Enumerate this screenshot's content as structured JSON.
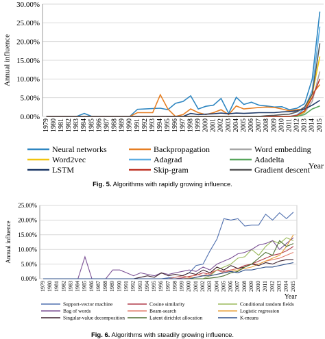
{
  "chart_data": [
    {
      "type": "line",
      "caption_label": "Fig. 5.",
      "caption_text": "Algorithms with rapidly growing influence.",
      "ylabel": "Annual influence",
      "xlabel": "Year",
      "ylim": [
        0,
        30
      ],
      "ytick_labels": [
        "0.00%",
        "5.00%",
        "10.00%",
        "15.00%",
        "20.00%",
        "25.00%",
        "30.00%"
      ],
      "x": [
        1979,
        1980,
        1981,
        1982,
        1983,
        1984,
        1985,
        1986,
        1987,
        1988,
        1989,
        1990,
        1991,
        1992,
        1993,
        1994,
        1995,
        1996,
        1997,
        1998,
        1999,
        2000,
        2001,
        2002,
        2003,
        2004,
        2005,
        2006,
        2007,
        2008,
        2009,
        2010,
        2011,
        2012,
        2013,
        2014,
        2015
      ],
      "series": [
        {
          "name": "Neural networks",
          "color": "#2e86c1",
          "values": [
            0,
            0,
            0,
            0,
            0,
            0.8,
            0,
            0,
            0,
            0,
            0,
            0,
            1.9,
            2,
            2.1,
            2.2,
            1.8,
            3.5,
            4,
            5.5,
            2,
            2.7,
            3,
            4.8,
            0.8,
            5.1,
            3.2,
            3.8,
            3,
            2.8,
            2.5,
            2.6,
            1.8,
            2.2,
            3.4,
            10,
            28
          ]
        },
        {
          "name": "Backpropagation",
          "color": "#e67e22",
          "values": [
            0,
            0,
            0,
            0,
            0,
            0,
            0,
            0,
            0,
            0,
            0,
            0,
            1,
            1,
            1,
            5.8,
            2,
            0,
            0.5,
            2,
            1,
            0.5,
            1,
            1.8,
            0.5,
            2.8,
            2,
            2.2,
            2.4,
            2.5,
            2.4,
            2,
            1.5,
            1.8,
            2,
            6,
            8.5
          ]
        },
        {
          "name": "Word embedding",
          "color": "#a6a6a6",
          "values": [
            0,
            0,
            0,
            0,
            0,
            0,
            0,
            0,
            0,
            0,
            0,
            0,
            0,
            0,
            0,
            0,
            0,
            0,
            0,
            0,
            0,
            0,
            0,
            0,
            0,
            0,
            0,
            0,
            0,
            0,
            0,
            0,
            0,
            0,
            1,
            4,
            12
          ]
        },
        {
          "name": "Word2vec",
          "color": "#f1c40f",
          "values": [
            0,
            0,
            0,
            0,
            0,
            0,
            0,
            0,
            0,
            0,
            0,
            0,
            0,
            0,
            0,
            0,
            0,
            0,
            0,
            0,
            0,
            0,
            0,
            0,
            0,
            0,
            0,
            0,
            0,
            0,
            0,
            0,
            0,
            0.2,
            1.2,
            6,
            16
          ]
        },
        {
          "name": "Adagrad",
          "color": "#5dade2",
          "values": [
            0,
            0,
            0,
            0,
            0,
            0,
            0,
            0,
            0,
            0,
            0,
            0,
            0,
            0,
            0,
            0,
            0,
            0,
            0,
            0,
            0,
            0,
            0,
            0,
            0,
            0,
            0,
            0,
            0,
            0,
            0,
            0,
            0,
            0.4,
            2.2,
            7,
            24
          ]
        },
        {
          "name": "Adadelta",
          "color": "#58a65c",
          "values": [
            0,
            0,
            0,
            0,
            0,
            0,
            0,
            0,
            0,
            0,
            0,
            0,
            0,
            0,
            0,
            0,
            0,
            0,
            0,
            0,
            0,
            0,
            0,
            0,
            0,
            0,
            0,
            0,
            0,
            0,
            0,
            0,
            0,
            0,
            0.5,
            2,
            2.8
          ]
        },
        {
          "name": "LSTM",
          "color": "#1f3a68",
          "values": [
            0,
            0,
            0,
            0,
            0,
            0,
            0,
            0,
            0,
            0,
            0,
            0,
            0,
            0,
            0,
            0,
            0,
            0,
            0,
            0.8,
            0.5,
            0.6,
            0.7,
            0.9,
            0.7,
            0.9,
            0.8,
            0.9,
            1,
            1,
            1,
            1.2,
            1.3,
            1.5,
            2,
            3,
            4.3
          ]
        },
        {
          "name": "Skip-gram",
          "color": "#c0392b",
          "values": [
            0,
            0,
            0,
            0,
            0,
            0,
            0,
            0,
            0,
            0,
            0,
            0,
            0,
            0,
            0,
            0,
            0,
            0,
            0,
            0,
            0,
            0,
            0,
            0,
            0,
            0,
            0,
            0,
            0,
            0,
            0,
            0,
            0,
            0.3,
            1.5,
            5,
            10
          ]
        },
        {
          "name": "Gradient descent",
          "color": "#595959",
          "values": [
            0,
            0,
            0,
            0,
            0,
            0,
            0,
            0,
            0,
            0,
            0,
            0,
            0,
            0,
            0,
            0,
            0,
            0,
            0,
            0,
            0,
            0,
            0,
            0,
            0,
            0,
            0,
            0,
            0,
            0.2,
            0.3,
            0.5,
            0.6,
            1.2,
            2.5,
            6,
            19.5
          ]
        }
      ]
    },
    {
      "type": "line",
      "caption_label": "Fig. 6.",
      "caption_text": "Algorithms with steadily growing influence.",
      "ylabel": "Annual influence",
      "xlabel": "Year",
      "ylim": [
        0,
        25
      ],
      "ytick_labels": [
        "0.00%",
        "5.00%",
        "10.00%",
        "15.00%",
        "20.00%",
        "25.00%"
      ],
      "x": [
        1979,
        1980,
        1981,
        1982,
        1983,
        1984,
        1985,
        1986,
        1987,
        1988,
        1989,
        1990,
        1991,
        1992,
        1993,
        1994,
        1995,
        1996,
        1997,
        1998,
        1999,
        2000,
        2001,
        2002,
        2003,
        2004,
        2005,
        2006,
        2007,
        2008,
        2009,
        2010,
        2011,
        2012,
        2013,
        2014,
        2015
      ],
      "series": [
        {
          "name": "Support-vector machine",
          "color": "#4f6fae",
          "values": [
            0,
            0,
            0,
            0,
            0,
            0,
            0,
            0,
            0,
            0,
            0,
            0,
            0,
            0,
            0,
            0,
            0,
            0,
            0.3,
            0.5,
            1,
            2,
            4.5,
            5,
            9.5,
            13.5,
            20.5,
            20,
            20.5,
            18,
            18.3,
            18.3,
            22,
            20,
            22.5,
            20.5,
            22.7
          ]
        },
        {
          "name": "Cosine similarity",
          "color": "#b03a48",
          "values": [
            0,
            0,
            0,
            0,
            0,
            0,
            0,
            0,
            0,
            0,
            0,
            0,
            0,
            0,
            0,
            0,
            0,
            0,
            0,
            0,
            0.3,
            0.8,
            1.2,
            2,
            1.5,
            3,
            2.5,
            3,
            3.5,
            4.5,
            5,
            6,
            7,
            8,
            8.5,
            9.5,
            11
          ]
        },
        {
          "name": "Conditional random fields",
          "color": "#9ab85a",
          "values": [
            0,
            0,
            0,
            0,
            0,
            0,
            0,
            0,
            0,
            0,
            0,
            0,
            0,
            0,
            0,
            0,
            0,
            0,
            0,
            0,
            0,
            0,
            0,
            0,
            1,
            3,
            4,
            5,
            7,
            7.5,
            10,
            8,
            11,
            13,
            12,
            14,
            13
          ]
        },
        {
          "name": "Bag of words",
          "color": "#7a4f94",
          "values": [
            0,
            0,
            0,
            0,
            0,
            0,
            7.5,
            0,
            0,
            0,
            3,
            3,
            2,
            1,
            2,
            1.5,
            1,
            2,
            1.5,
            2,
            2.5,
            3,
            2.5,
            4,
            3,
            5,
            6,
            7,
            8.5,
            9,
            10,
            11.5,
            12,
            13,
            10,
            12,
            14
          ]
        },
        {
          "name": "Beam-search",
          "color": "#e07d6b",
          "values": [
            0,
            0,
            0,
            0,
            0,
            0,
            0,
            0,
            0,
            0,
            0,
            0,
            0,
            0,
            0,
            0,
            0,
            0,
            0,
            0.5,
            1,
            0.5,
            1.5,
            1,
            2,
            3,
            2,
            3,
            3.5,
            4,
            5,
            5,
            6,
            6.5,
            7,
            8,
            9
          ]
        },
        {
          "name": "Logistic regression",
          "color": "#e8a23d",
          "values": [
            0,
            0,
            0,
            0,
            0,
            0,
            0,
            0,
            0,
            0,
            0,
            0,
            0,
            0,
            0,
            0,
            0,
            0,
            0,
            0,
            0,
            0.2,
            0.5,
            1,
            1,
            1.5,
            2,
            2.5,
            3,
            3.5,
            4,
            5,
            6,
            7,
            8,
            11,
            15
          ]
        },
        {
          "name": "Singular-value decomposition",
          "color": "#3b1f2b",
          "values": [
            0,
            0,
            0,
            0,
            0,
            0,
            0,
            0,
            0,
            0,
            0,
            0,
            0,
            0,
            0.5,
            1,
            0.5,
            2,
            1,
            1.5,
            1,
            2,
            1.5,
            3,
            2,
            4,
            3,
            4.5,
            3.5,
            4,
            5,
            4.5,
            5.5,
            5,
            6,
            6.5,
            6.5
          ]
        },
        {
          "name": "Latent dirichlet allocation",
          "color": "#4a6d2f",
          "values": [
            0,
            0,
            0,
            0,
            0,
            0,
            0,
            0,
            0,
            0,
            0,
            0,
            0,
            0,
            0,
            0,
            0,
            0,
            0,
            0,
            0,
            0,
            0,
            0,
            0.2,
            0.5,
            1,
            2,
            2.5,
            4,
            5,
            7,
            9,
            8,
            13,
            11,
            12
          ]
        },
        {
          "name": "K-means",
          "color": "#2d4f8a",
          "values": [
            0,
            0,
            0,
            0,
            0,
            0,
            0,
            0,
            0,
            0,
            0,
            0,
            0,
            0,
            0,
            0,
            0,
            0,
            0,
            0,
            0,
            0,
            0.5,
            1,
            1,
            1.5,
            2,
            2.5,
            2,
            3,
            3,
            3.5,
            4,
            4,
            4.5,
            5,
            5.5
          ]
        }
      ]
    }
  ]
}
